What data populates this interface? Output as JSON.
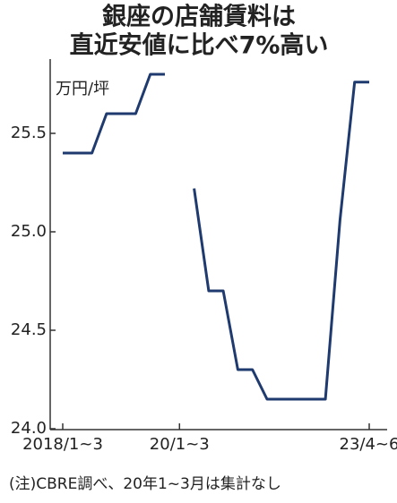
{
  "chart_data": {
    "type": "line",
    "title": [
      "銀座の店舗賃料は",
      "直近安値に比べ7%高い"
    ],
    "unit_label": "万円/坪",
    "note": "(注)CBRE調べ、20年1~3月は集計なし",
    "categories": [
      "2018/1~3",
      null,
      null,
      null,
      null,
      null,
      null,
      null,
      "20/1~3",
      null,
      null,
      null,
      null,
      null,
      null,
      null,
      null,
      null,
      null,
      null,
      null,
      "23/4~6"
    ],
    "values": [
      25.4,
      25.4,
      25.4,
      25.6,
      25.6,
      25.6,
      25.8,
      25.8,
      null,
      25.22,
      24.7,
      24.7,
      24.3,
      24.3,
      24.15,
      24.15,
      24.15,
      24.15,
      24.15,
      25.06,
      25.76,
      25.76
    ],
    "color": "#1f3a6e",
    "ylim": [
      24.0,
      25.85
    ],
    "yticks": [
      {
        "value": 24.0,
        "label": "24.0"
      },
      {
        "value": 24.5,
        "label": "24.5"
      },
      {
        "value": 25.0,
        "label": "25.0"
      },
      {
        "value": 25.5,
        "label": "25.5"
      }
    ],
    "grid": false
  }
}
